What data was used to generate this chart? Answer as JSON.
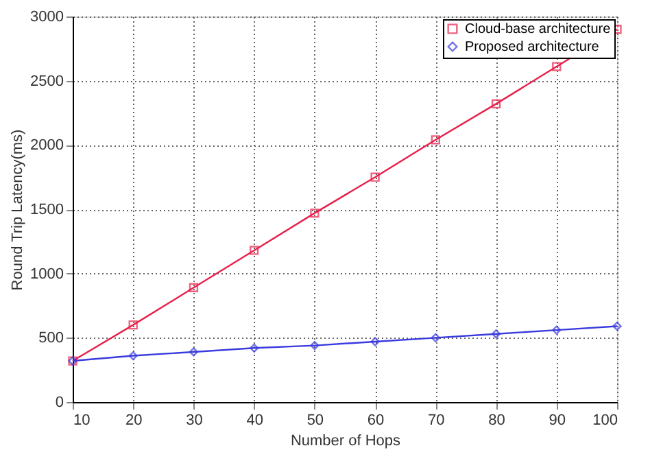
{
  "chart_data": {
    "type": "line",
    "xlabel": "Number of Hops",
    "ylabel": "Round Trip Latency(ms)",
    "x": [
      10,
      20,
      30,
      40,
      50,
      60,
      70,
      80,
      90,
      100
    ],
    "series": [
      {
        "name": "Cloud-base architecture",
        "color": "#e8204a",
        "marker": "square",
        "values": [
          320,
          600,
          890,
          1180,
          1470,
          1750,
          2040,
          2320,
          2610,
          2900
        ]
      },
      {
        "name": "Proposed architecture",
        "color": "#3a3ae0",
        "marker": "diamond",
        "values": [
          320,
          360,
          390,
          420,
          440,
          470,
          500,
          530,
          560,
          590
        ]
      }
    ],
    "xlim": [
      10,
      100
    ],
    "xticks": [
      10,
      20,
      30,
      40,
      50,
      60,
      70,
      80,
      90,
      100
    ],
    "ylim": [
      0,
      3000
    ],
    "yticks": [
      0,
      500,
      1000,
      1500,
      2000,
      2500,
      3000
    ],
    "grid": true,
    "legend": "top right",
    "line_style": "solid"
  }
}
